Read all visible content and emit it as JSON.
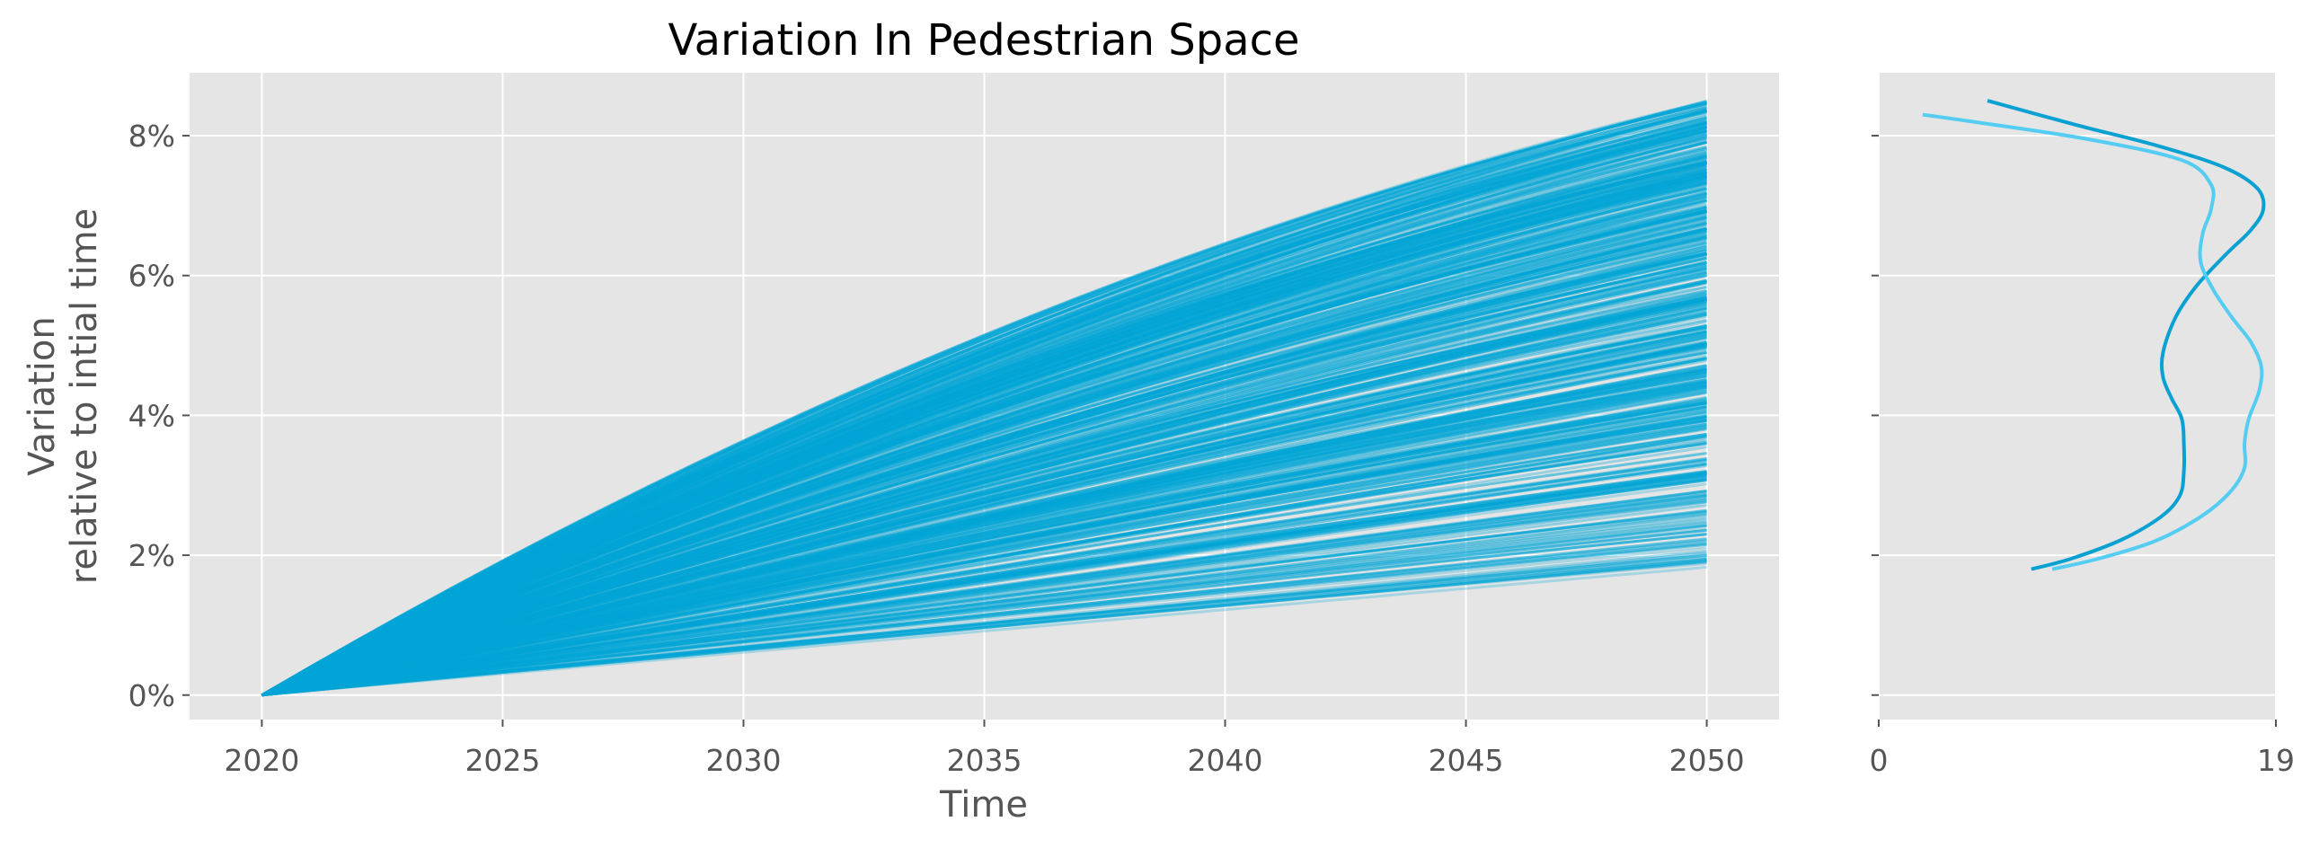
{
  "chart_data": [
    {
      "type": "line",
      "title": "Variation In Pedestrian Space",
      "xlabel": "Time",
      "ylabel": [
        "Variation",
        "relative to intial time"
      ],
      "xlim": [
        2018.5,
        2051.5
      ],
      "ylim": [
        -0.0035,
        0.089
      ],
      "xticks": [
        2020,
        2025,
        2030,
        2035,
        2040,
        2045,
        2050
      ],
      "xtick_labels": [
        "2020",
        "2025",
        "2030",
        "2035",
        "2040",
        "2045",
        "2050"
      ],
      "yticks": [
        0,
        0.02,
        0.04,
        0.06,
        0.08
      ],
      "ytick_labels": [
        "0%",
        "2%",
        "4%",
        "6%",
        "8%"
      ],
      "grid": true,
      "background": "#e5e5e5",
      "line_color": "#00a5d6",
      "series_count": 500,
      "series_description": "ensemble of trajectories from 0 at 2020 to final values between 1.8% and 8.5% at 2050",
      "x_start": 2020,
      "x_end": 2050,
      "final_value_range": [
        0.018,
        0.085
      ]
    },
    {
      "type": "line",
      "subtype": "density",
      "title": "",
      "xlim": [
        0,
        19
      ],
      "ylim": [
        -0.0035,
        0.089
      ],
      "xticks": [
        0,
        19
      ],
      "xtick_labels": [
        "0",
        "19"
      ],
      "grid": true,
      "background": "#e5e5e5",
      "series": [
        {
          "color": "#09a1d2",
          "points": [
            {
              "x": 7.3,
              "y": 0.018
            },
            {
              "x": 9.2,
              "y": 0.0195
            },
            {
              "x": 11.6,
              "y": 0.0222
            },
            {
              "x": 13.5,
              "y": 0.0255
            },
            {
              "x": 14.4,
              "y": 0.0285
            },
            {
              "x": 14.6,
              "y": 0.032
            },
            {
              "x": 14.6,
              "y": 0.036
            },
            {
              "x": 14.5,
              "y": 0.0395
            },
            {
              "x": 14.0,
              "y": 0.0425
            },
            {
              "x": 13.6,
              "y": 0.0455
            },
            {
              "x": 13.6,
              "y": 0.049
            },
            {
              "x": 14.2,
              "y": 0.054
            },
            {
              "x": 15.2,
              "y": 0.0585
            },
            {
              "x": 16.6,
              "y": 0.063
            },
            {
              "x": 17.8,
              "y": 0.0665
            },
            {
              "x": 18.4,
              "y": 0.0695
            },
            {
              "x": 18.1,
              "y": 0.0725
            },
            {
              "x": 16.5,
              "y": 0.0755
            },
            {
              "x": 13.4,
              "y": 0.0785
            },
            {
              "x": 9.5,
              "y": 0.0815
            },
            {
              "x": 5.2,
              "y": 0.085
            }
          ]
        },
        {
          "color": "#55cdf2",
          "points": [
            {
              "x": 8.3,
              "y": 0.018
            },
            {
              "x": 10.5,
              "y": 0.0195
            },
            {
              "x": 13.2,
              "y": 0.022
            },
            {
              "x": 15.4,
              "y": 0.0255
            },
            {
              "x": 16.8,
              "y": 0.029
            },
            {
              "x": 17.5,
              "y": 0.0325
            },
            {
              "x": 17.5,
              "y": 0.036
            },
            {
              "x": 17.7,
              "y": 0.0395
            },
            {
              "x": 18.2,
              "y": 0.0435
            },
            {
              "x": 18.3,
              "y": 0.047
            },
            {
              "x": 17.8,
              "y": 0.0505
            },
            {
              "x": 16.9,
              "y": 0.054
            },
            {
              "x": 16.0,
              "y": 0.058
            },
            {
              "x": 15.4,
              "y": 0.062
            },
            {
              "x": 15.5,
              "y": 0.066
            },
            {
              "x": 15.9,
              "y": 0.0695
            },
            {
              "x": 15.9,
              "y": 0.073
            },
            {
              "x": 14.5,
              "y": 0.0765
            },
            {
              "x": 10.0,
              "y": 0.0795
            },
            {
              "x": 4.5,
              "y": 0.082
            },
            {
              "x": 2.1,
              "y": 0.083
            }
          ]
        }
      ]
    }
  ]
}
